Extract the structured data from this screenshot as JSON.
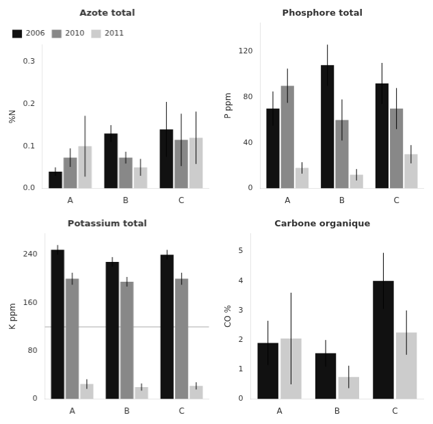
{
  "chart_data": [
    {
      "type": "bar",
      "title": "Azote total",
      "y_label": "%N",
      "categories": [
        "A",
        "B",
        "C"
      ],
      "series": [
        {
          "name": "2006",
          "color": "#111111",
          "values": [
            0.04,
            0.13,
            0.14
          ],
          "errors": [
            0.01,
            0.02,
            0.065
          ]
        },
        {
          "name": "2010",
          "color": "#888888",
          "values": [
            0.073,
            0.073,
            0.115
          ],
          "errors": [
            0.022,
            0.014,
            0.062
          ]
        },
        {
          "name": "2011",
          "color": "#cccccc",
          "values": [
            0.1,
            0.05,
            0.12
          ],
          "errors": [
            0.072,
            0.02,
            0.062
          ]
        }
      ],
      "ylim": [
        0,
        0.34
      ],
      "yticks": [
        {
          "value": 0,
          "label": "0.0"
        },
        {
          "value": 0.1,
          "label": "0.1"
        },
        {
          "value": 0.2,
          "label": "0.2"
        },
        {
          "value": 0.3,
          "label": "0.3"
        }
      ],
      "grid": false,
      "legend": "upper left"
    },
    {
      "type": "bar",
      "title": "Phosphore total",
      "y_label": "P ppm",
      "categories": [
        "A",
        "B",
        "C"
      ],
      "series": [
        {
          "color": "#111111",
          "values": [
            70,
            108,
            92
          ],
          "errors": [
            15,
            18,
            18
          ]
        },
        {
          "color": "#888888",
          "values": [
            90,
            60,
            70
          ],
          "errors": [
            15,
            18,
            18
          ]
        },
        {
          "color": "#cccccc",
          "values": [
            18,
            12,
            30
          ],
          "errors": [
            5,
            5,
            8
          ]
        }
      ],
      "ylim": [
        0,
        145
      ],
      "yticks": [
        0,
        40,
        80,
        120
      ],
      "grid": false
    },
    {
      "type": "bar",
      "title": "Potassium total",
      "y_label": "K ppm",
      "categories": [
        "A",
        "B",
        "C"
      ],
      "series": [
        {
          "color": "#111111",
          "values": [
            248,
            228,
            240
          ],
          "errors": [
            8,
            8,
            8
          ]
        },
        {
          "color": "#888888",
          "values": [
            200,
            195,
            200
          ],
          "errors": [
            10,
            8,
            10
          ]
        },
        {
          "color": "#cccccc",
          "values": [
            25,
            20,
            22
          ],
          "errors": [
            8,
            6,
            6
          ]
        }
      ],
      "ylim": [
        0,
        275
      ],
      "yticks": [
        0,
        80,
        160,
        240
      ],
      "grid": false,
      "hline": {
        "y": 120,
        "color": "#aaaaaa"
      }
    },
    {
      "type": "bar",
      "title": "Carbone organique",
      "y_label": "CO %",
      "categories": [
        "A",
        "B",
        "C"
      ],
      "series": [
        {
          "color": "#111111",
          "values": [
            1.9,
            1.55,
            4.0
          ],
          "errors": [
            0.75,
            0.45,
            0.95
          ]
        },
        {
          "color": "#cccccc",
          "values": [
            2.05,
            0.75,
            2.25
          ],
          "errors": [
            1.55,
            0.38,
            0.75
          ]
        }
      ],
      "ylim": [
        0,
        5.6
      ],
      "yticks": [
        0,
        1,
        2,
        3,
        4,
        5
      ],
      "grid": false
    }
  ]
}
